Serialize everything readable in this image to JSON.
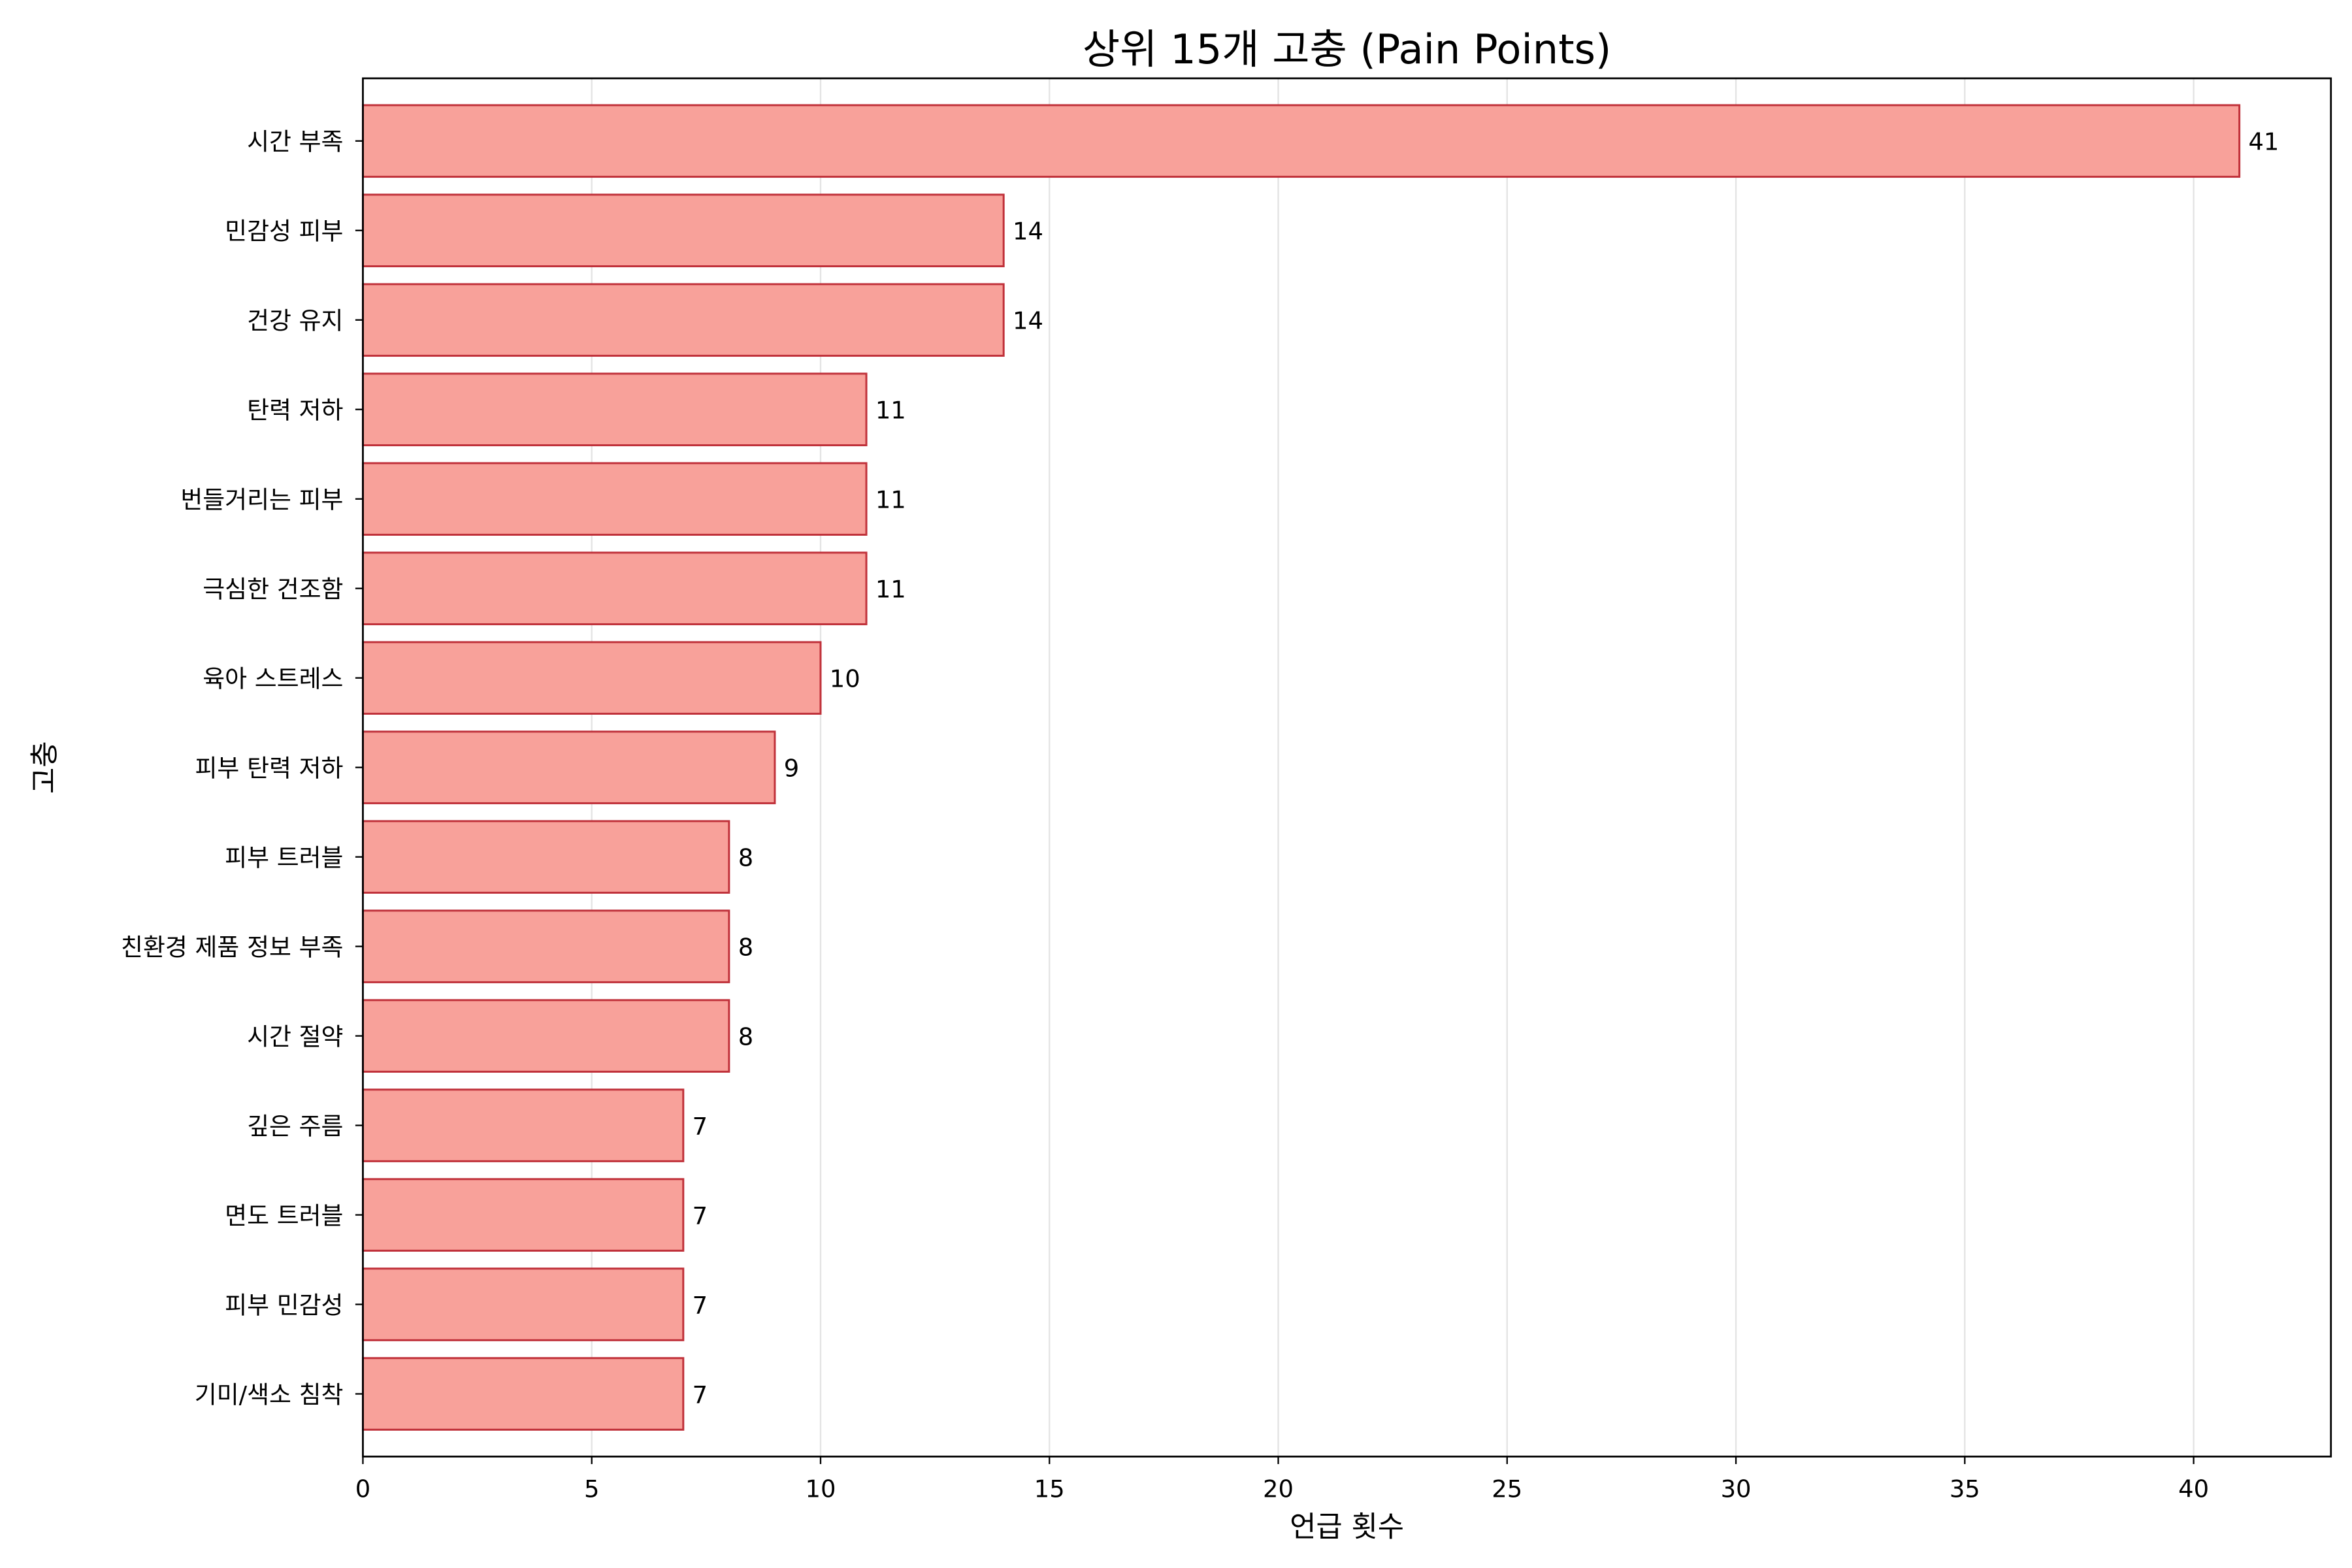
{
  "chart_data": {
    "type": "bar",
    "orientation": "horizontal",
    "title": "상위 15개 고충 (Pain Points)",
    "xlabel": "언급 횟수",
    "ylabel": "고충",
    "xlim": [
      0,
      43
    ],
    "xticks": [
      0,
      5,
      10,
      15,
      20,
      25,
      30,
      35,
      40
    ],
    "grid": "vertical",
    "categories": [
      "시간 부족",
      "민감성 피부",
      "건강 유지",
      "탄력 저하",
      "번들거리는 피부",
      "극심한 건조함",
      "육아 스트레스",
      "피부 탄력 저하",
      "피부 트러블",
      "친환경 제품 정보 부족",
      "시간 절약",
      "깊은 주름",
      "면도 트러블",
      "피부 민감성",
      "기미/색소 침착"
    ],
    "values": [
      41,
      14,
      14,
      11,
      11,
      11,
      10,
      9,
      8,
      8,
      8,
      7,
      7,
      7,
      7
    ],
    "bar_color": "#f8a19a",
    "edge_color": "#c0313a"
  }
}
